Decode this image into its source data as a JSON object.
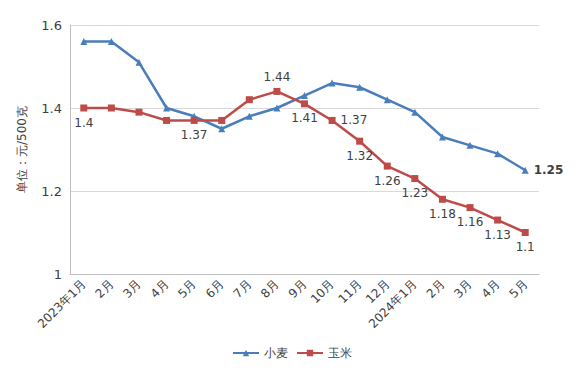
{
  "chart_data": {
    "type": "line",
    "y_label": "单位：元/500克",
    "categories": [
      "2023年1月",
      "2月",
      "3月",
      "4月",
      "5月",
      "6月",
      "7月",
      "8月",
      "9月",
      "10月",
      "11月",
      "12月",
      "2024年1月",
      "2月",
      "3月",
      "4月",
      "5月"
    ],
    "series": [
      {
        "name": "小麦",
        "color": "#4a7ebb",
        "marker": "triangle",
        "values": [
          1.56,
          1.56,
          1.51,
          1.4,
          1.38,
          1.35,
          1.38,
          1.4,
          1.43,
          1.46,
          1.45,
          1.42,
          1.39,
          1.33,
          1.31,
          1.29,
          1.25
        ],
        "value_labels": [
          null,
          null,
          null,
          null,
          null,
          null,
          null,
          null,
          null,
          null,
          null,
          null,
          null,
          null,
          null,
          null,
          "1.25"
        ]
      },
      {
        "name": "玉米",
        "color": "#be4b48",
        "marker": "square",
        "values": [
          1.4,
          1.4,
          1.39,
          1.37,
          1.37,
          1.37,
          1.42,
          1.44,
          1.41,
          1.37,
          1.32,
          1.26,
          1.23,
          1.18,
          1.16,
          1.13,
          1.1
        ],
        "value_labels": [
          "1.4",
          null,
          null,
          null,
          "1.37",
          null,
          null,
          "1.44",
          "1.41",
          "1.37",
          "1.32",
          "1.26",
          "1.23",
          "1.18",
          "1.16",
          "1.13",
          "1.1"
        ]
      }
    ],
    "ylim": [
      1,
      1.6
    ],
    "yticks": [
      1,
      1.2,
      1.4,
      1.6
    ],
    "grid": true,
    "legend": "bottom"
  }
}
